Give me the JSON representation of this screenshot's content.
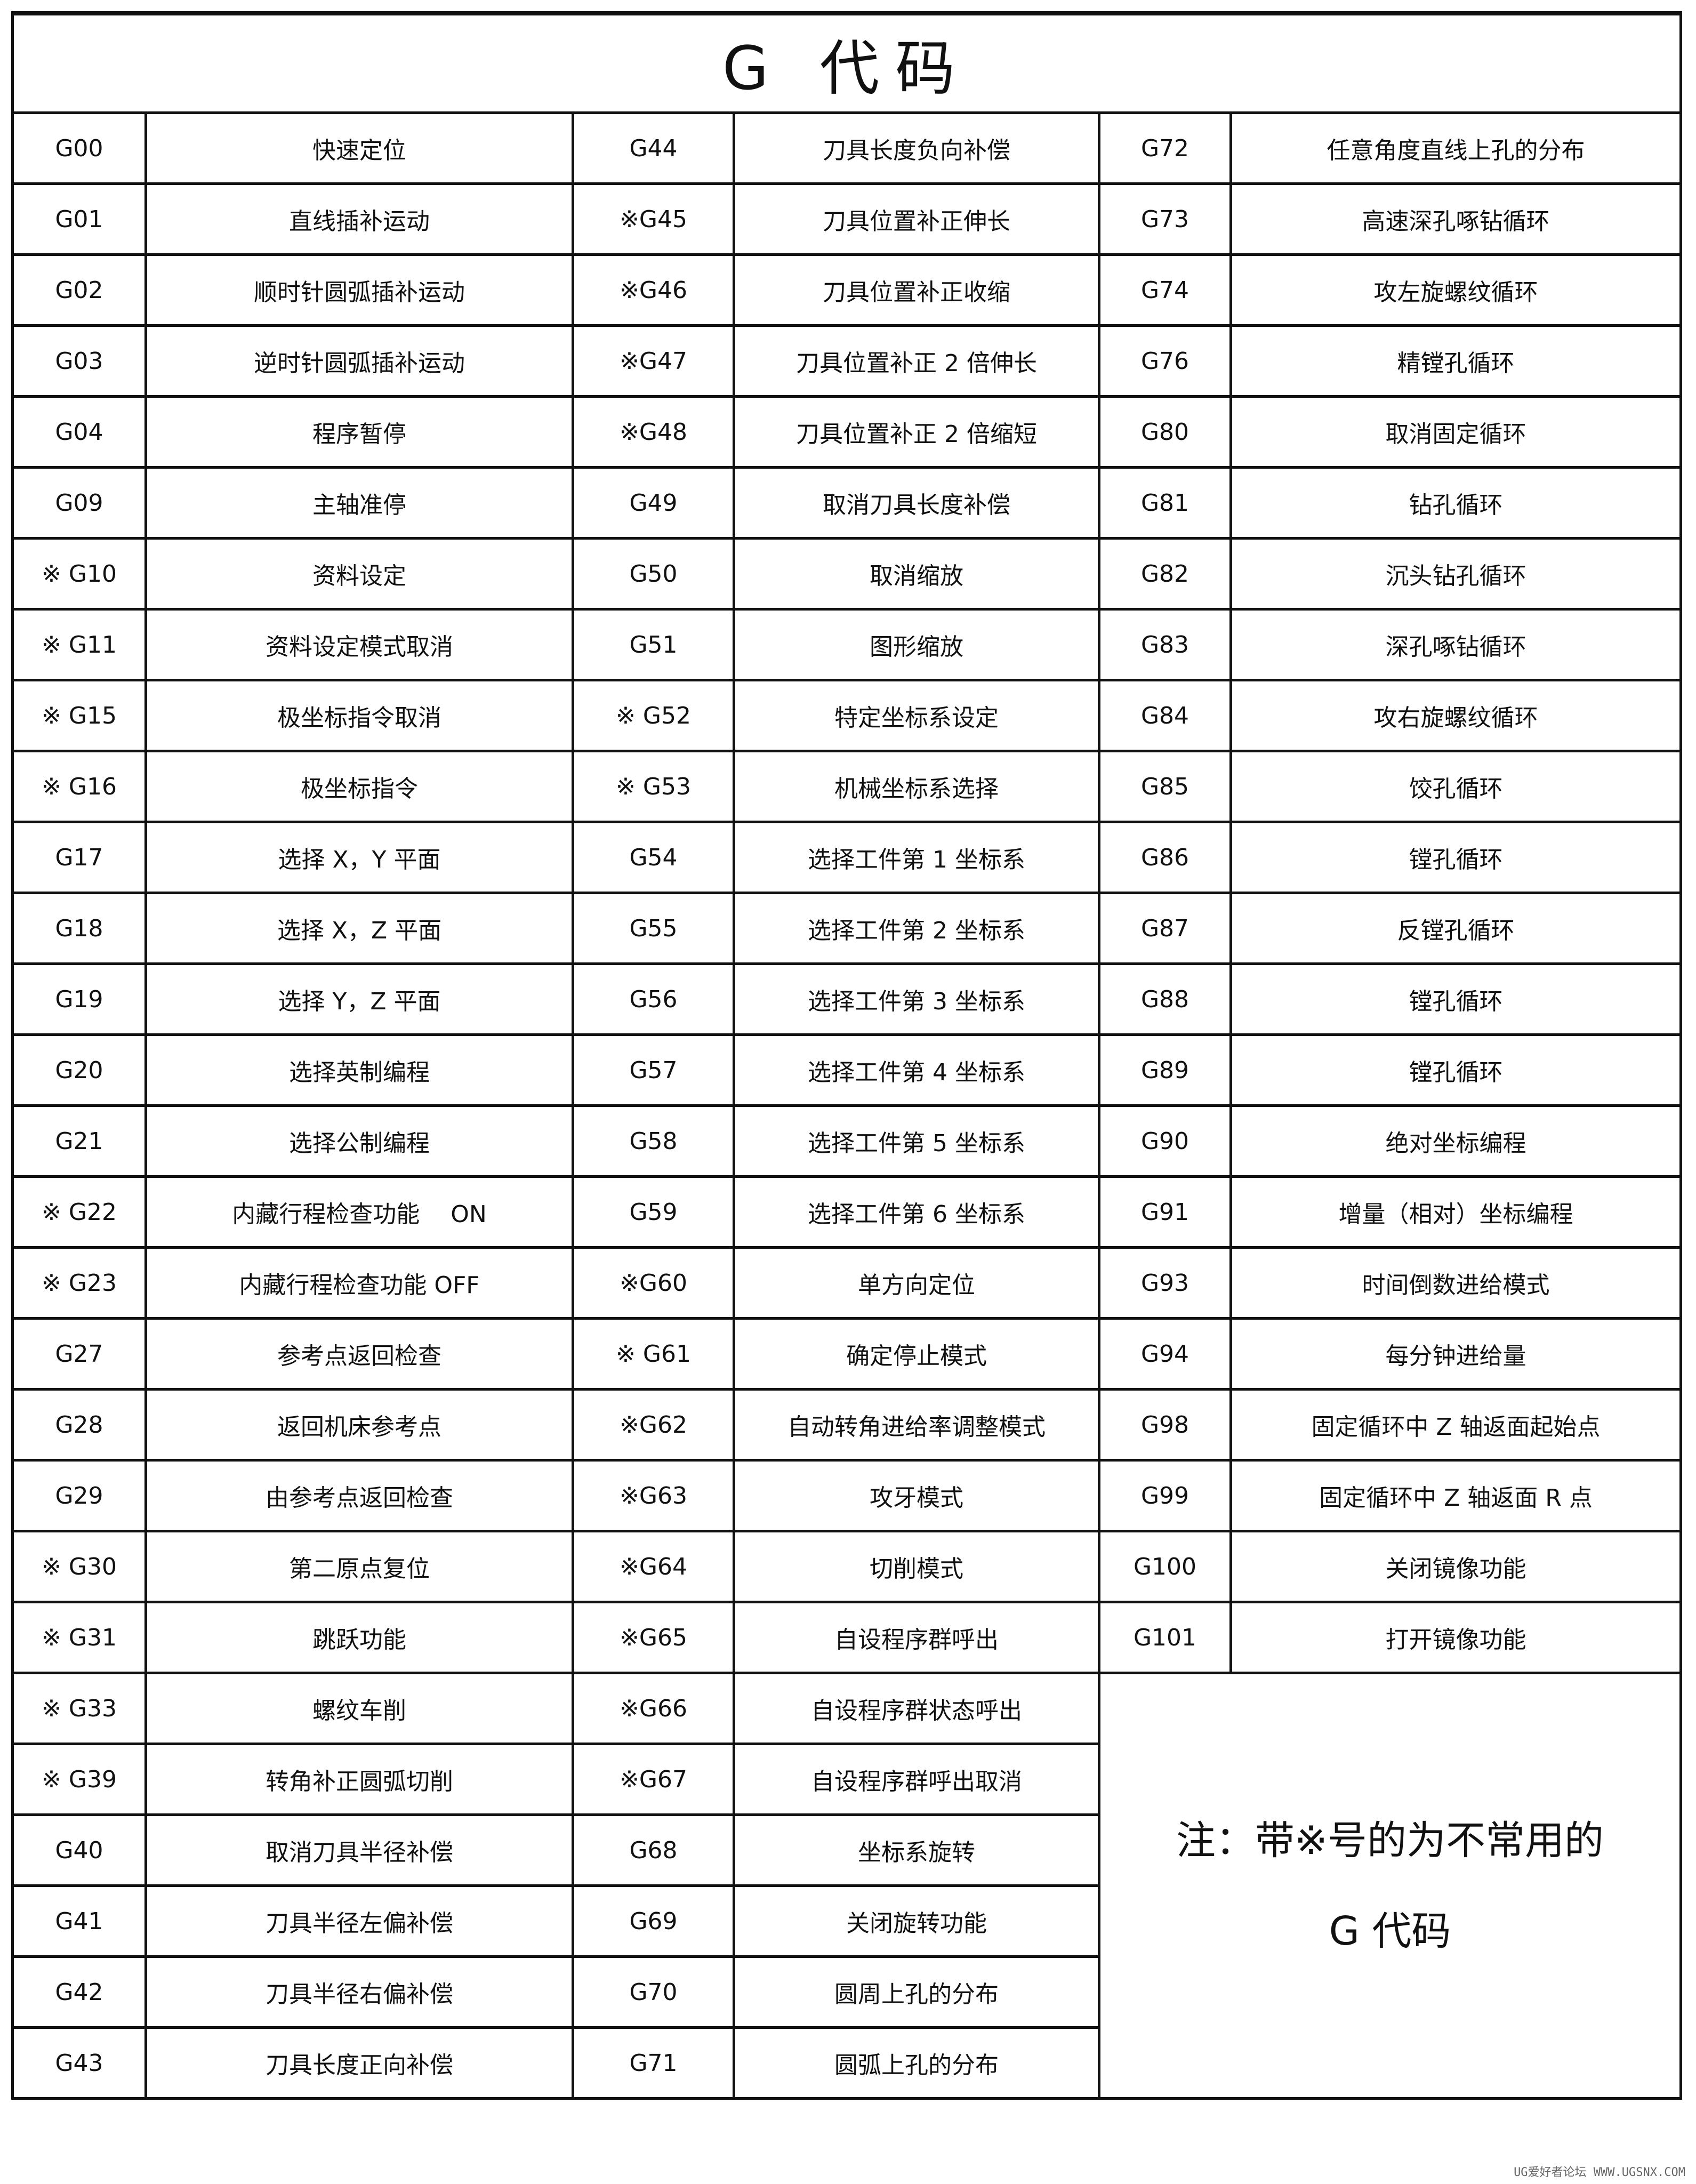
{
  "title": "G 代码",
  "rows": [
    [
      "G00",
      "快速定位",
      "G44",
      "刀具长度负向补偿",
      "G72",
      "任意角度直线上孔的分布"
    ],
    [
      "G01",
      "直线插补运动",
      "※G45",
      "刀具位置补正伸长",
      "G73",
      "高速深孔啄钻循环"
    ],
    [
      "G02",
      "顺时针圆弧插补运动",
      "※G46",
      "刀具位置补正收缩",
      "G74",
      "攻左旋螺纹循环"
    ],
    [
      "G03",
      "逆时针圆弧插补运动",
      "※G47",
      "刀具位置补正 2 倍伸长",
      "G76",
      "精镗孔循环"
    ],
    [
      "G04",
      "程序暂停",
      "※G48",
      "刀具位置补正 2 倍缩短",
      "G80",
      "取消固定循环"
    ],
    [
      "G09",
      "主轴准停",
      "G49",
      "取消刀具长度补偿",
      "G81",
      "钻孔循环"
    ],
    [
      "※ G10",
      "资料设定",
      "G50",
      "取消缩放",
      "G82",
      "沉头钻孔循环"
    ],
    [
      "※ G11",
      "资料设定模式取消",
      "G51",
      "图形缩放",
      "G83",
      "深孔啄钻循环"
    ],
    [
      "※ G15",
      "极坐标指令取消",
      "※ G52",
      "特定坐标系设定",
      "G84",
      "攻右旋螺纹循环"
    ],
    [
      "※ G16",
      "极坐标指令",
      "※ G53",
      "机械坐标系选择",
      "G85",
      "饺孔循环"
    ],
    [
      "G17",
      "选择 X，Y 平面",
      "G54",
      "选择工件第 1 坐标系",
      "G86",
      "镗孔循环"
    ],
    [
      "G18",
      "选择 X，Z 平面",
      "G55",
      "选择工件第 2 坐标系",
      "G87",
      "反镗孔循环"
    ],
    [
      "G19",
      "选择 Y，Z 平面",
      "G56",
      "选择工件第 3 坐标系",
      "G88",
      "镗孔循环"
    ],
    [
      "G20",
      "选择英制编程",
      "G57",
      "选择工件第 4 坐标系",
      "G89",
      "镗孔循环"
    ],
    [
      "G21",
      "选择公制编程",
      "G58",
      "选择工件第 5 坐标系",
      "G90",
      "绝对坐标编程"
    ],
    [
      "※ G22",
      "内藏行程检查功能　 ON",
      "G59",
      "选择工件第 6 坐标系",
      "G91",
      "增量（相对）坐标编程"
    ],
    [
      "※ G23",
      "内藏行程检查功能 OFF",
      "※G60",
      "单方向定位",
      "G93",
      "时间倒数进给模式"
    ],
    [
      "G27",
      "参考点返回检查",
      "※ G61",
      "确定停止模式",
      "G94",
      "每分钟进给量"
    ],
    [
      "G28",
      "返回机床参考点",
      "※G62",
      "自动转角进给率调整模式",
      "G98",
      "固定循环中 Z 轴返面起始点"
    ],
    [
      "G29",
      "由参考点返回检查",
      "※G63",
      "攻牙模式",
      "G99",
      "固定循环中 Z 轴返面 R 点"
    ],
    [
      "※ G30",
      "第二原点复位",
      "※G64",
      "切削模式",
      "G100",
      "关闭镜像功能"
    ],
    [
      "※ G31",
      "跳跃功能",
      "※G65",
      "自设程序群呼出",
      "G101",
      "打开镜像功能"
    ],
    [
      "※ G33",
      "螺纹车削",
      "※G66",
      "自设程序群状态呼出"
    ],
    [
      "※ G39",
      "转角补正圆弧切削",
      "※G67",
      "自设程序群呼出取消"
    ],
    [
      "G40",
      "取消刀具半径补偿",
      "G68",
      "坐标系旋转"
    ],
    [
      "G41",
      "刀具半径左偏补偿",
      "G69",
      "关闭旋转功能"
    ],
    [
      "G42",
      "刀具半径右偏补偿",
      "G70",
      "圆周上孔的分布"
    ],
    [
      "G43",
      "刀具长度正向补偿",
      "G71",
      "圆弧上孔的分布"
    ]
  ],
  "note": {
    "line1": "注：带※号的为不常用的",
    "line2": "G 代码"
  },
  "watermark": "UG爱好者论坛 WWW.UGSNX.COM"
}
